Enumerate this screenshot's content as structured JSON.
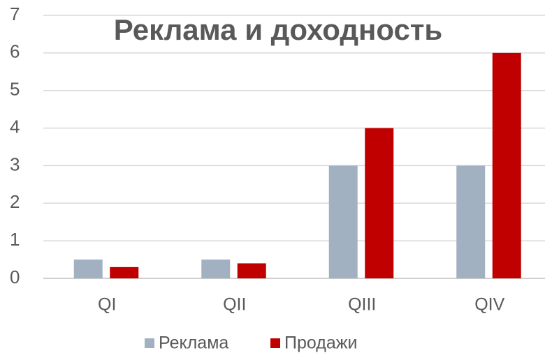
{
  "chart_data": {
    "type": "bar",
    "title": "Реклама и доходность",
    "categories": [
      "QI",
      "QII",
      "QIII",
      "QIV"
    ],
    "series": [
      {
        "name": "Реклама",
        "color": "#a2b1c2",
        "values": [
          0.5,
          0.5,
          3,
          3
        ]
      },
      {
        "name": "Продажи",
        "color": "#c00000",
        "values": [
          0.3,
          0.4,
          4,
          6
        ]
      }
    ],
    "ylim": [
      0,
      7
    ],
    "yticks": [
      0,
      1,
      2,
      3,
      4,
      5,
      6,
      7
    ],
    "grid": true,
    "legend": "bottom"
  }
}
